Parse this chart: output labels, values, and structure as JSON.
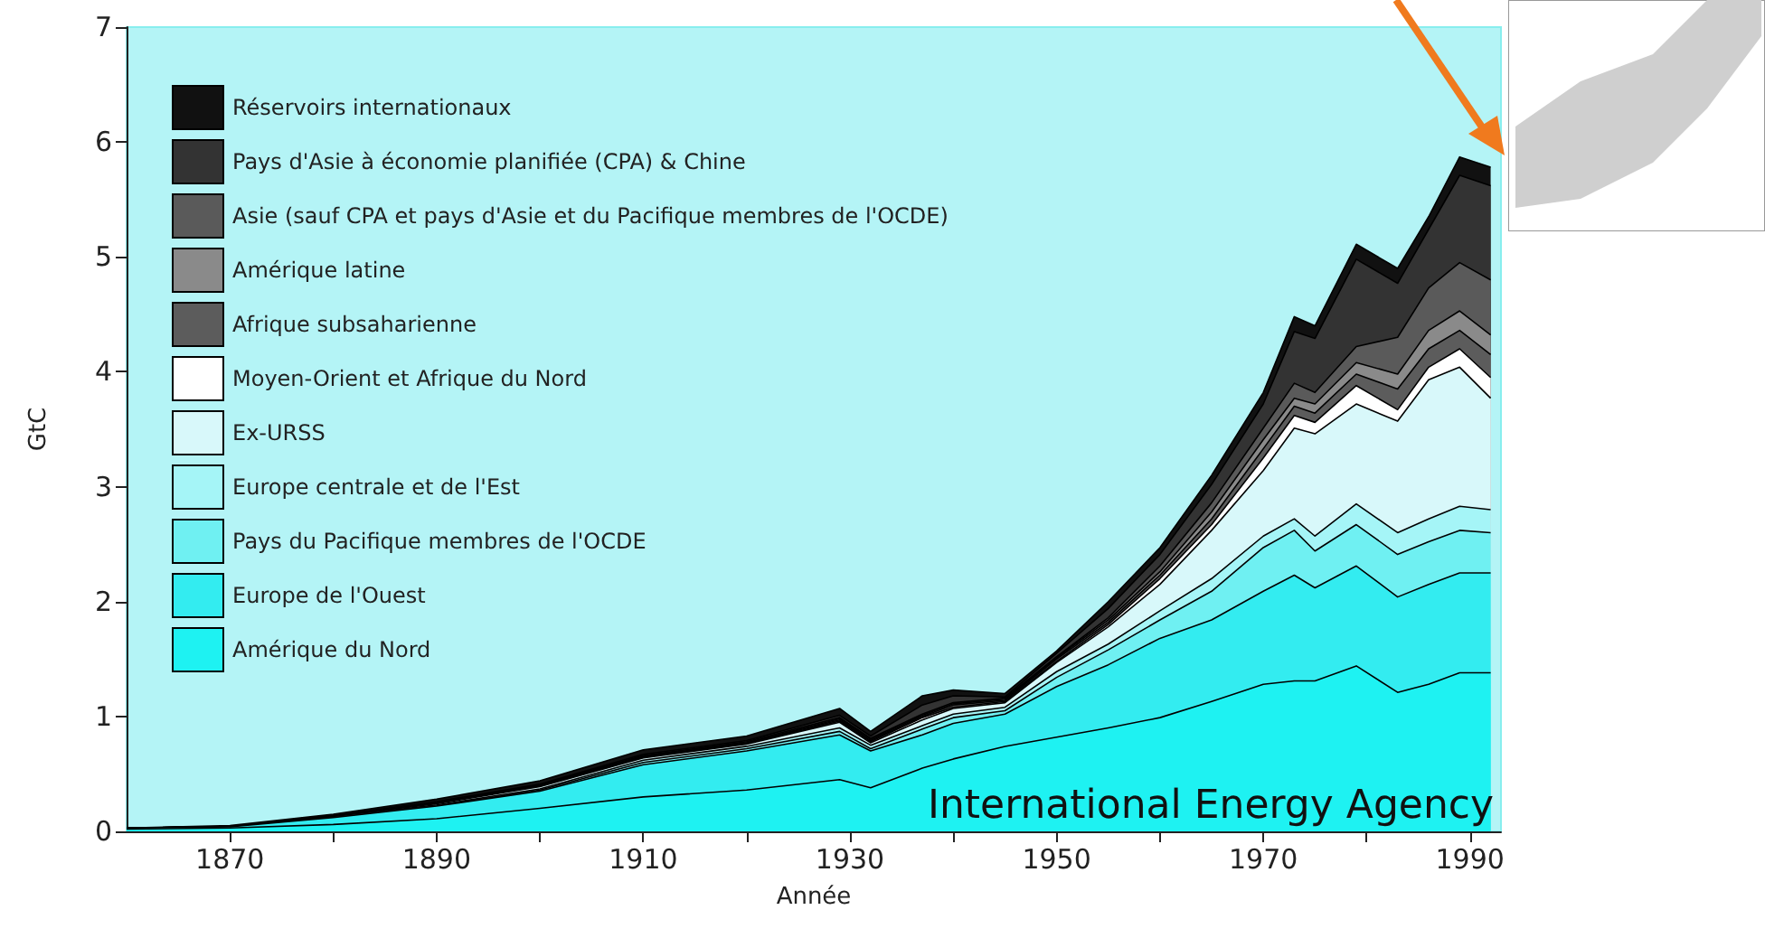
{
  "chart_data": {
    "type": "area",
    "stacked": true,
    "xlabel": "Année",
    "ylabel": "GtC",
    "annotations": [
      "International Energy Agency"
    ],
    "x": [
      1860,
      1870,
      1880,
      1890,
      1900,
      1910,
      1920,
      1929,
      1932,
      1937,
      1940,
      1945,
      1950,
      1955,
      1960,
      1965,
      1970,
      1973,
      1975,
      1979,
      1983,
      1986,
      1989,
      1992
    ],
    "series": [
      {
        "name": "Amérique du Nord",
        "color": "#1ef2f2",
        "values": [
          0.02,
          0.03,
          0.06,
          0.11,
          0.2,
          0.3,
          0.36,
          0.45,
          0.38,
          0.55,
          0.63,
          0.74,
          0.82,
          0.9,
          0.99,
          1.13,
          1.28,
          1.31,
          1.31,
          1.44,
          1.21,
          1.28,
          1.38,
          1.38
        ]
      },
      {
        "name": "Europe de l'Ouest",
        "color": "#33ecf0",
        "values": [
          0.01,
          0.01,
          0.06,
          0.11,
          0.15,
          0.28,
          0.34,
          0.39,
          0.32,
          0.29,
          0.31,
          0.28,
          0.44,
          0.55,
          0.69,
          0.71,
          0.81,
          0.92,
          0.81,
          0.87,
          0.83,
          0.87,
          0.87,
          0.87
        ]
      },
      {
        "name": "Pays du Pacifique membres de l'OCDE",
        "color": "#6ff0f2",
        "values": [
          0,
          0,
          0,
          0,
          0.01,
          0.02,
          0.02,
          0.03,
          0.02,
          0.05,
          0.05,
          0.03,
          0.08,
          0.13,
          0.16,
          0.25,
          0.38,
          0.39,
          0.32,
          0.36,
          0.37,
          0.37,
          0.37,
          0.35
        ]
      },
      {
        "name": "Europe centrale et de l'Est",
        "color": "#a5f5f7",
        "values": [
          0,
          0,
          0.01,
          0.01,
          0.01,
          0.02,
          0.02,
          0.03,
          0.03,
          0.03,
          0.03,
          0.03,
          0.05,
          0.05,
          0.08,
          0.11,
          0.1,
          0.1,
          0.13,
          0.18,
          0.19,
          0.2,
          0.21,
          0.2
        ]
      },
      {
        "name": "Ex-URSS",
        "color": "#d8f8fa",
        "values": [
          0,
          0,
          0,
          0.01,
          0.02,
          0.02,
          0.02,
          0.05,
          0.02,
          0.05,
          0.05,
          0.04,
          0.08,
          0.15,
          0.23,
          0.42,
          0.57,
          0.79,
          0.89,
          0.87,
          0.97,
          1.21,
          1.21,
          0.97
        ]
      },
      {
        "name": "Moyen-Orient et Afrique du Nord",
        "color": "#ffffff",
        "values": [
          0,
          0,
          0,
          0,
          0,
          0,
          0,
          0.01,
          0.01,
          0.02,
          0.01,
          0.01,
          0.01,
          0.02,
          0.05,
          0.05,
          0.11,
          0.11,
          0.1,
          0.16,
          0.1,
          0.11,
          0.16,
          0.18
        ]
      },
      {
        "name": "Afrique subsaharienne",
        "color": "#5c5c5c",
        "values": [
          0,
          0,
          0,
          0,
          0,
          0.01,
          0.01,
          0.01,
          0.01,
          0.01,
          0.02,
          0.01,
          0.02,
          0.02,
          0.03,
          0.05,
          0.08,
          0.08,
          0.08,
          0.1,
          0.18,
          0.16,
          0.16,
          0.2
        ]
      },
      {
        "name": "Amérique latine",
        "color": "#8a8a8a",
        "values": [
          0,
          0,
          0,
          0.01,
          0.01,
          0,
          0,
          0.01,
          0.01,
          0.01,
          0.01,
          0.01,
          0.01,
          0.02,
          0.03,
          0.06,
          0.08,
          0.07,
          0.08,
          0.1,
          0.13,
          0.16,
          0.17,
          0.17
        ]
      },
      {
        "name": "Asie (sauf CPA et pays d'Asie et du Pacifique membres de l'OCDE)",
        "color": "#5a5a5a",
        "values": [
          0,
          0,
          0,
          0,
          0,
          0.01,
          0.01,
          0.01,
          0.01,
          0.01,
          0.01,
          0.01,
          0.01,
          0.02,
          0.05,
          0.08,
          0.1,
          0.13,
          0.1,
          0.14,
          0.32,
          0.37,
          0.42,
          0.48
        ]
      },
      {
        "name": "Pays d'Asie à économie planifiée (CPA) & Chine",
        "color": "#333333",
        "values": [
          0,
          0,
          0.01,
          0.01,
          0.01,
          0.01,
          0.01,
          0.02,
          0.02,
          0.08,
          0.06,
          0.01,
          0.03,
          0.08,
          0.1,
          0.16,
          0.21,
          0.45,
          0.47,
          0.76,
          0.47,
          0.51,
          0.76,
          0.82
        ]
      },
      {
        "name": "Réservoirs internationaux",
        "color": "#111111",
        "values": [
          0,
          0.01,
          0.01,
          0.02,
          0.03,
          0.04,
          0.04,
          0.06,
          0.04,
          0.08,
          0.05,
          0.03,
          0.02,
          0.06,
          0.06,
          0.08,
          0.1,
          0.13,
          0.11,
          0.13,
          0.13,
          0.11,
          0.16,
          0.16
        ]
      }
    ],
    "xlim": [
      1860,
      1993
    ],
    "xticks": [
      1870,
      {
        "value": 1880,
        "label": null
      },
      1890,
      {
        "value": 1900,
        "label": null
      },
      1910,
      {
        "value": 1920,
        "label": null
      },
      1930,
      {
        "value": 1940,
        "label": null
      },
      1950,
      {
        "value": 1960,
        "label": null
      },
      1970,
      {
        "value": 1980,
        "label": null
      },
      1990
    ],
    "ylim": [
      0,
      7
    ],
    "yticks": [
      0,
      1,
      2,
      3,
      4,
      5,
      6,
      7
    ],
    "grid": false,
    "legend": "top left"
  }
}
